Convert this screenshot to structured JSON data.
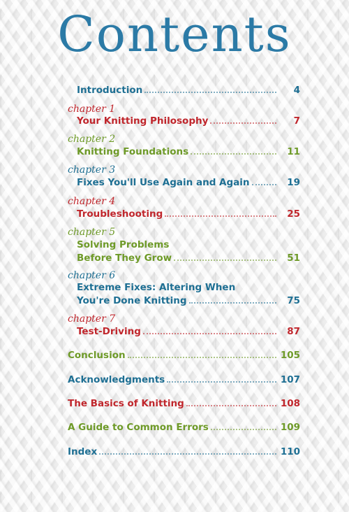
{
  "title": "Contents",
  "colors": {
    "blue": "#1e6f93",
    "red": "#c0262c",
    "green": "#6e9a28",
    "title": "#2b7aa6"
  },
  "entries": [
    {
      "chapter": "",
      "name": "Introduction",
      "page": "4",
      "color": "#1e6f93"
    },
    {
      "chapter": "chapter 1",
      "name": "Your Knitting Philosophy",
      "page": "7",
      "color": "#c0262c"
    },
    {
      "chapter": "chapter 2",
      "name": "Knitting Foundations",
      "page": "11",
      "color": "#6e9a28"
    },
    {
      "chapter": "chapter 3",
      "name": "Fixes You'll Use Again and Again",
      "page": "19",
      "color": "#1e6f93"
    },
    {
      "chapter": "chapter 4",
      "name": "Troubleshooting",
      "page": "25",
      "color": "#c0262c"
    },
    {
      "chapter": "chapter 5",
      "name_line1": "Solving Problems",
      "name": "Before They Grow",
      "page": "51",
      "color": "#6e9a28"
    },
    {
      "chapter": "chapter 6",
      "name_line1": "Extreme Fixes: Altering When",
      "name": "You're Done Knitting",
      "page": "75",
      "color": "#1e6f93"
    },
    {
      "chapter": "chapter 7",
      "name": "Test-Driving",
      "page": "87",
      "color": "#c0262c"
    },
    {
      "chapter": "",
      "name": "Conclusion",
      "page": "105",
      "color": "#6e9a28"
    },
    {
      "chapter": "",
      "name": "Acknowledgments",
      "page": "107",
      "color": "#1e6f93"
    },
    {
      "chapter": "",
      "name": "The Basics of Knitting",
      "page": "108",
      "color": "#c0262c"
    },
    {
      "chapter": "",
      "name": "A Guide to Common Errors",
      "page": "109",
      "color": "#6e9a28"
    },
    {
      "chapter": "",
      "name": "Index",
      "page": "110",
      "color": "#1e6f93"
    }
  ]
}
